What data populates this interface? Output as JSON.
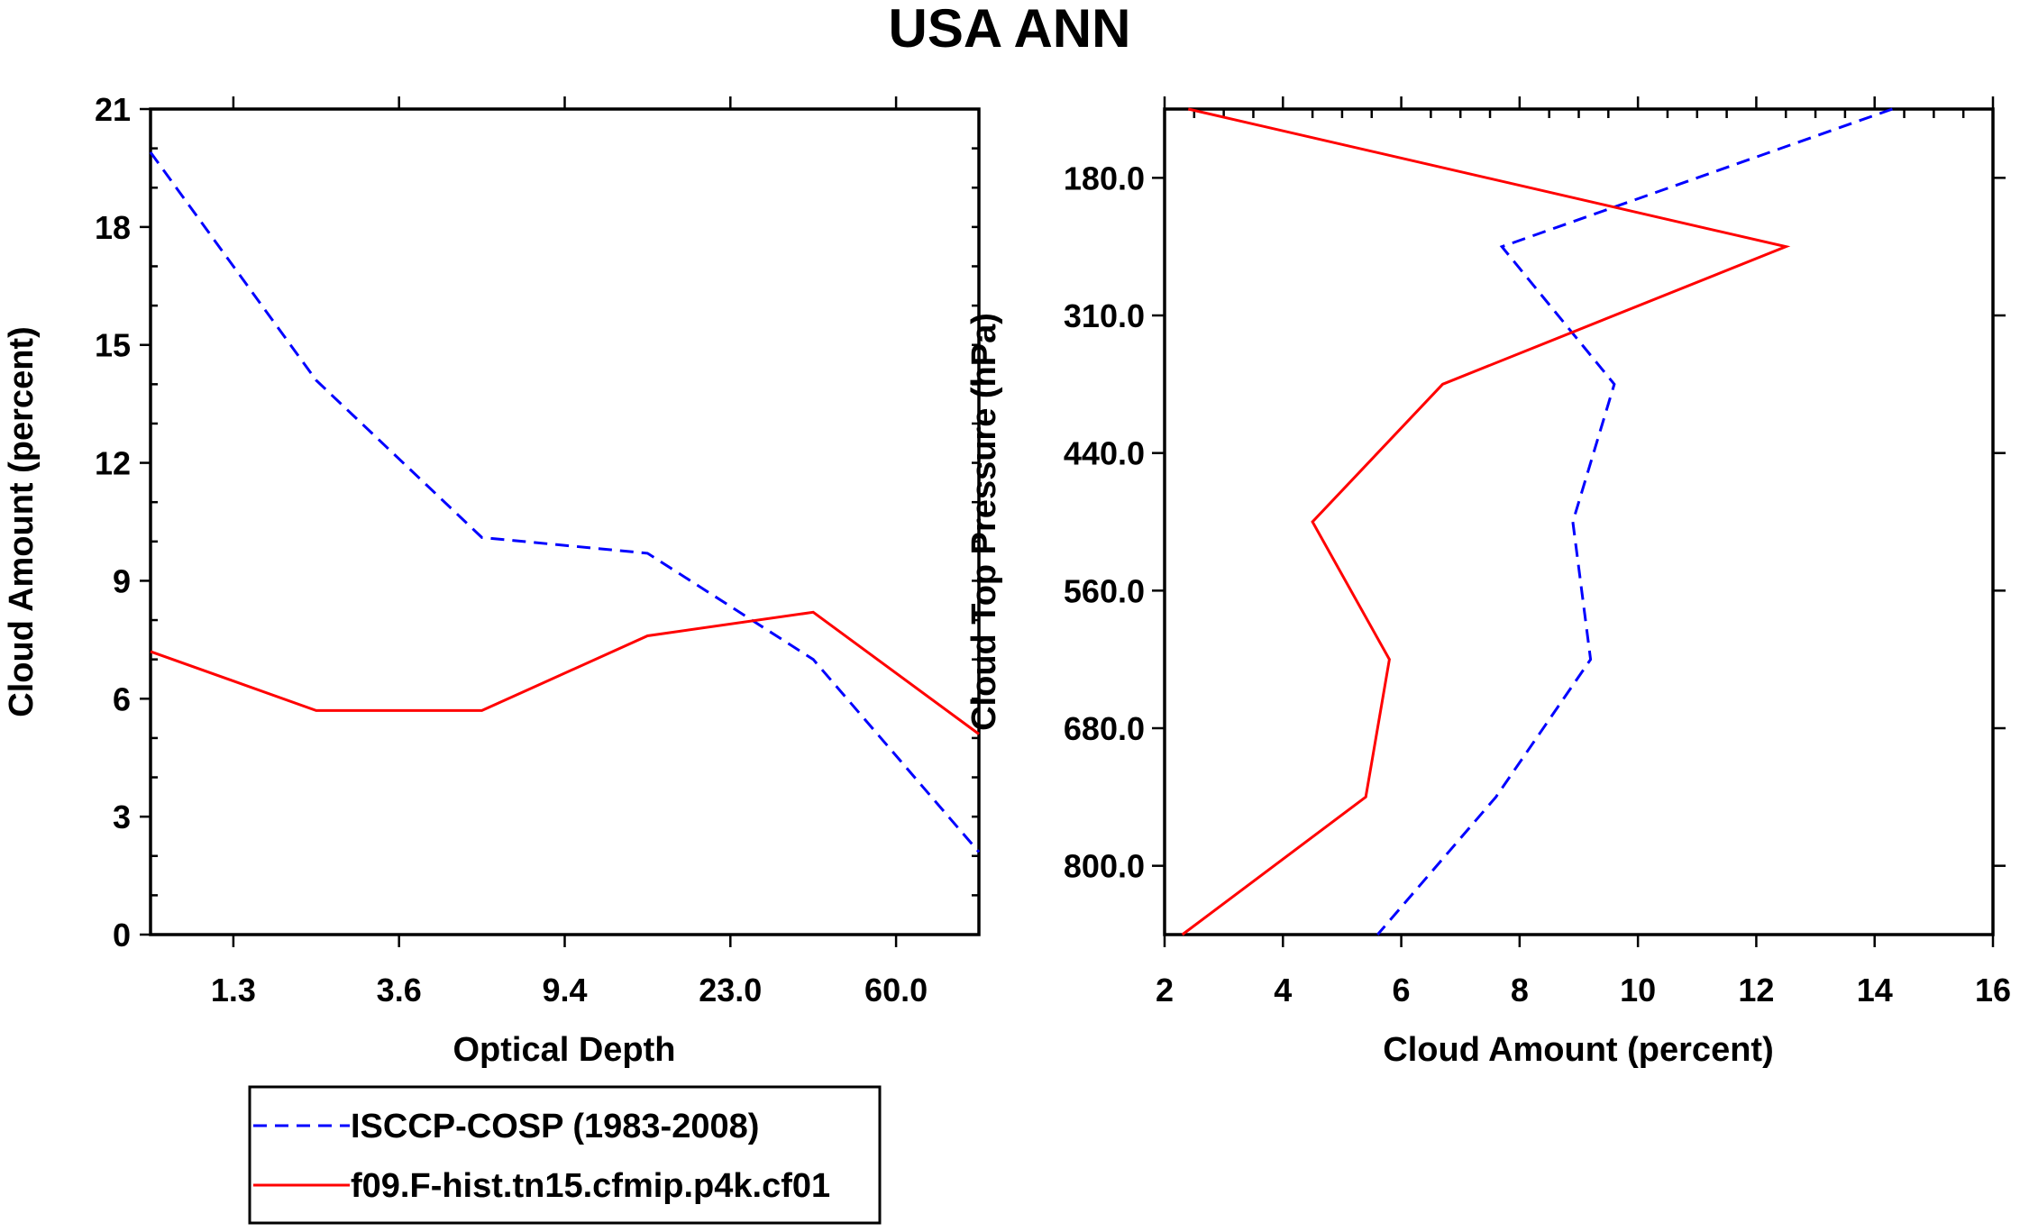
{
  "page_title": "USA ANN",
  "chart_data": [
    {
      "type": "line",
      "title": "USA ANN",
      "xlabel": "Optical Depth",
      "ylabel": "Cloud Amount (percent)",
      "x_ticklabels": [
        "1.3",
        "3.6",
        "9.4",
        "23.0",
        "60.0"
      ],
      "x": [
        0,
        1,
        2,
        3,
        4,
        5
      ],
      "ylim": [
        0,
        21
      ],
      "y_ticks": [
        0,
        3,
        6,
        9,
        12,
        15,
        18,
        21
      ],
      "series": [
        {
          "name": "ISCCP-COSP (1983-2008)",
          "color": "#0000ff",
          "style": "dashed",
          "values": [
            19.9,
            14.1,
            10.1,
            9.7,
            7.0,
            2.1
          ]
        },
        {
          "name": "f09.F-hist.tn15.cfmip.p4k.cf01",
          "color": "#ff0000",
          "style": "solid",
          "values": [
            7.2,
            5.7,
            5.7,
            7.6,
            8.2,
            5.1
          ]
        }
      ]
    },
    {
      "type": "line",
      "orientation": "horizontal",
      "xlabel": "Cloud Amount (percent)",
      "ylabel": "Cloud Top Pressure (hPa)",
      "xlim": [
        2,
        16
      ],
      "x_ticks": [
        2,
        4,
        6,
        8,
        10,
        12,
        14,
        16
      ],
      "y_ticklabels": [
        "180.0",
        "310.0",
        "440.0",
        "560.0",
        "680.0",
        "800.0"
      ],
      "levels": [
        0,
        1,
        2,
        3,
        4,
        5,
        6
      ],
      "series": [
        {
          "name": "ISCCP-COSP (1983-2008)",
          "color": "#0000ff",
          "style": "dashed",
          "values": [
            14.3,
            7.7,
            9.6,
            8.9,
            9.2,
            7.6,
            5.6
          ]
        },
        {
          "name": "f09.F-hist.tn15.cfmip.p4k.cf01",
          "color": "#ff0000",
          "style": "solid",
          "values": [
            2.4,
            12.5,
            6.7,
            4.5,
            5.8,
            5.4,
            2.3
          ]
        }
      ]
    }
  ],
  "legend": [
    {
      "label": "ISCCP-COSP (1983-2008)",
      "color": "#0000ff",
      "style": "dashed"
    },
    {
      "label": "f09.F-hist.tn15.cfmip.p4k.cf01",
      "color": "#ff0000",
      "style": "solid"
    }
  ]
}
